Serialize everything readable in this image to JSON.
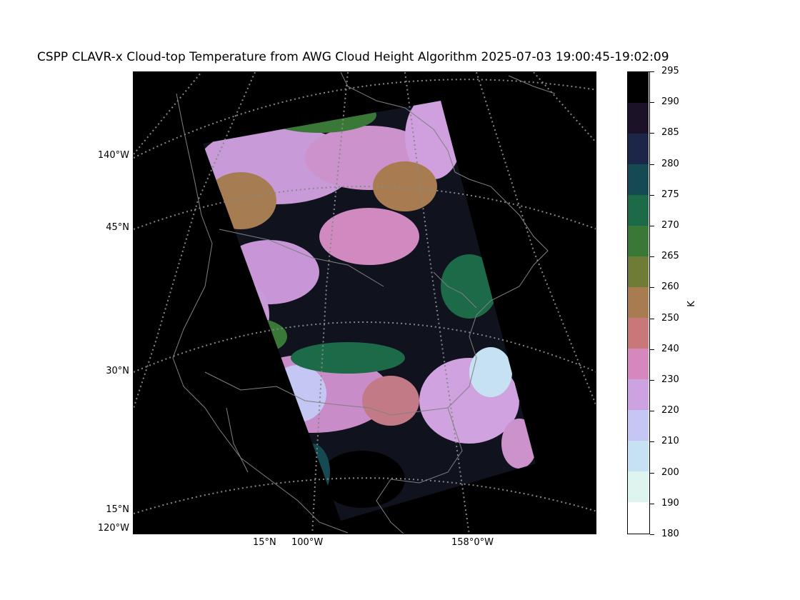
{
  "title": "CSPP CLAVR-x Cloud-top Temperature from AWG Cloud Height Algorithm 2025-07-03 19:00:45-19:02:09",
  "map": {
    "background_color": "#000000",
    "coastline_color": "#808080",
    "gridline_color": "#888888",
    "lat_labels_left": [
      "140°W",
      "45°N",
      "30°N",
      "15°N",
      "120°W"
    ],
    "lon_labels_bottom": [
      "15°N",
      "100°W",
      "158°0°W"
    ]
  },
  "colorbar": {
    "unit": "K",
    "ticks": [
      "295",
      "290",
      "285",
      "280",
      "275",
      "270",
      "265",
      "260",
      "250",
      "240",
      "230",
      "220",
      "210",
      "200",
      "190",
      "180"
    ],
    "colors_top_to_bottom": [
      "#000000",
      "#1c1228",
      "#1c2648",
      "#164a52",
      "#1c6a48",
      "#3a7838",
      "#6e7c36",
      "#a87c50",
      "#c87878",
      "#d688bc",
      "#cca2e0",
      "#c4c6f4",
      "#c6e2f2",
      "#def4ee",
      "#ffffff"
    ]
  },
  "chart_data": {
    "type": "heatmap",
    "title": "CSPP CLAVR-x Cloud-top Temperature from AWG Cloud Height Algorithm 2025-07-03 19:00:45-19:02:09",
    "colorbar_label": "K",
    "colorbar_range": [
      180,
      295
    ],
    "colorbar_levels": [
      180,
      190,
      200,
      210,
      220,
      230,
      240,
      250,
      260,
      265,
      270,
      275,
      280,
      285,
      290,
      295
    ]
  }
}
